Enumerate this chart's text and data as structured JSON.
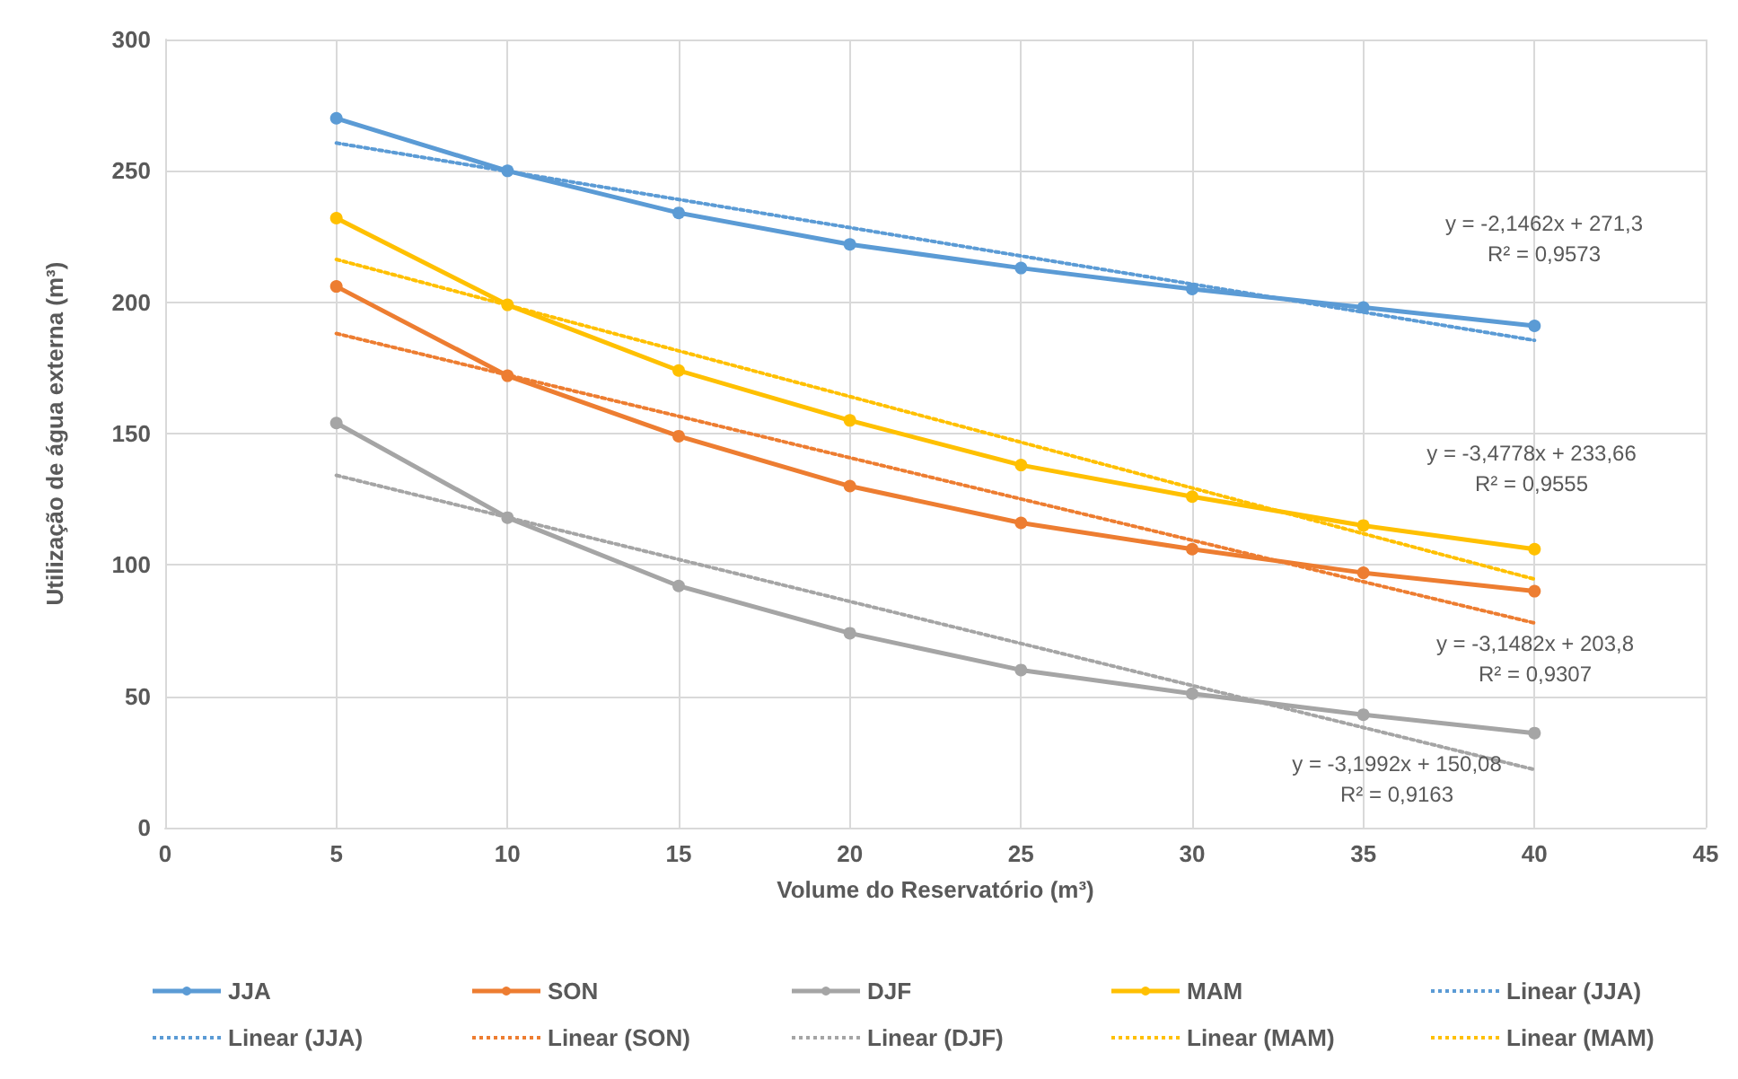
{
  "chart_data": {
    "type": "line",
    "xlabel": "Volume do Reservatório (m³)",
    "ylabel": "Utilização de água externa (m³)",
    "x": [
      5,
      10,
      15,
      20,
      25,
      30,
      35,
      40
    ],
    "series": [
      {
        "name": "JJA",
        "color": "#5b9bd5",
        "values": [
          270,
          250,
          234,
          222,
          213,
          205,
          198,
          191
        ]
      },
      {
        "name": "SON",
        "color": "#ed7d31",
        "values": [
          206,
          172,
          149,
          130,
          116,
          106,
          97,
          90
        ]
      },
      {
        "name": "DJF",
        "color": "#a5a5a5",
        "values": [
          154,
          118,
          92,
          74,
          60,
          51,
          43,
          36
        ]
      },
      {
        "name": "MAM",
        "color": "#ffc000",
        "values": [
          232,
          199,
          174,
          155,
          138,
          126,
          115,
          106
        ]
      },
      {
        "name": "Linear (JJA)",
        "color": "#5b9bd5",
        "values": [
          260.6,
          249.8,
          239.1,
          228.4,
          217.6,
          206.9,
          196.2,
          185.5
        ],
        "marker": "none",
        "line_style": "dotted"
      },
      {
        "name": "Linear (JJA)",
        "color": "#5b9bd5",
        "values": [
          null,
          null,
          null,
          null,
          null,
          null,
          null,
          null
        ],
        "marker": "none",
        "line_style": "dotted"
      },
      {
        "name": "Linear (SON)",
        "color": "#ed7d31",
        "values": [
          188.1,
          172.3,
          156.6,
          140.8,
          125.1,
          109.4,
          93.6,
          77.9
        ],
        "marker": "none",
        "line_style": "dotted"
      },
      {
        "name": "Linear (DJF)",
        "color": "#a5a5a5",
        "values": [
          134.1,
          118.1,
          102.1,
          86.1,
          70.1,
          54.1,
          38.1,
          22.1
        ],
        "marker": "none",
        "line_style": "dotted"
      },
      {
        "name": "Linear (MAM)",
        "color": "#ffc000",
        "values": [
          216.3,
          198.9,
          181.5,
          164.1,
          146.7,
          129.3,
          111.9,
          94.6
        ],
        "marker": "none",
        "line_style": "dotted"
      },
      {
        "name": "Linear (MAM)",
        "color": "#ffc000",
        "values": [
          null,
          null,
          null,
          null,
          null,
          null,
          null,
          null
        ],
        "marker": "none",
        "line_style": "dotted"
      }
    ],
    "annotations": [
      "y = -2,1462x + 271,3\nR² = 0,9573",
      "y = -3,4778x + 233,66\nR² = 0,9555",
      "y = -3,1482x + 203,8\nR² = 0,9307",
      "y = -3,1992x + 150,08\nR² = 0,9163"
    ],
    "xlim": [
      0,
      45
    ],
    "xticks": [
      0,
      5,
      10,
      15,
      20,
      25,
      30,
      35,
      40,
      45
    ],
    "ylim": [
      0,
      300
    ],
    "yticks": [
      0,
      50,
      100,
      150,
      200,
      250,
      300
    ],
    "grid": true,
    "legend": "bottom",
    "marker": "circle",
    "line_style": "solid"
  }
}
